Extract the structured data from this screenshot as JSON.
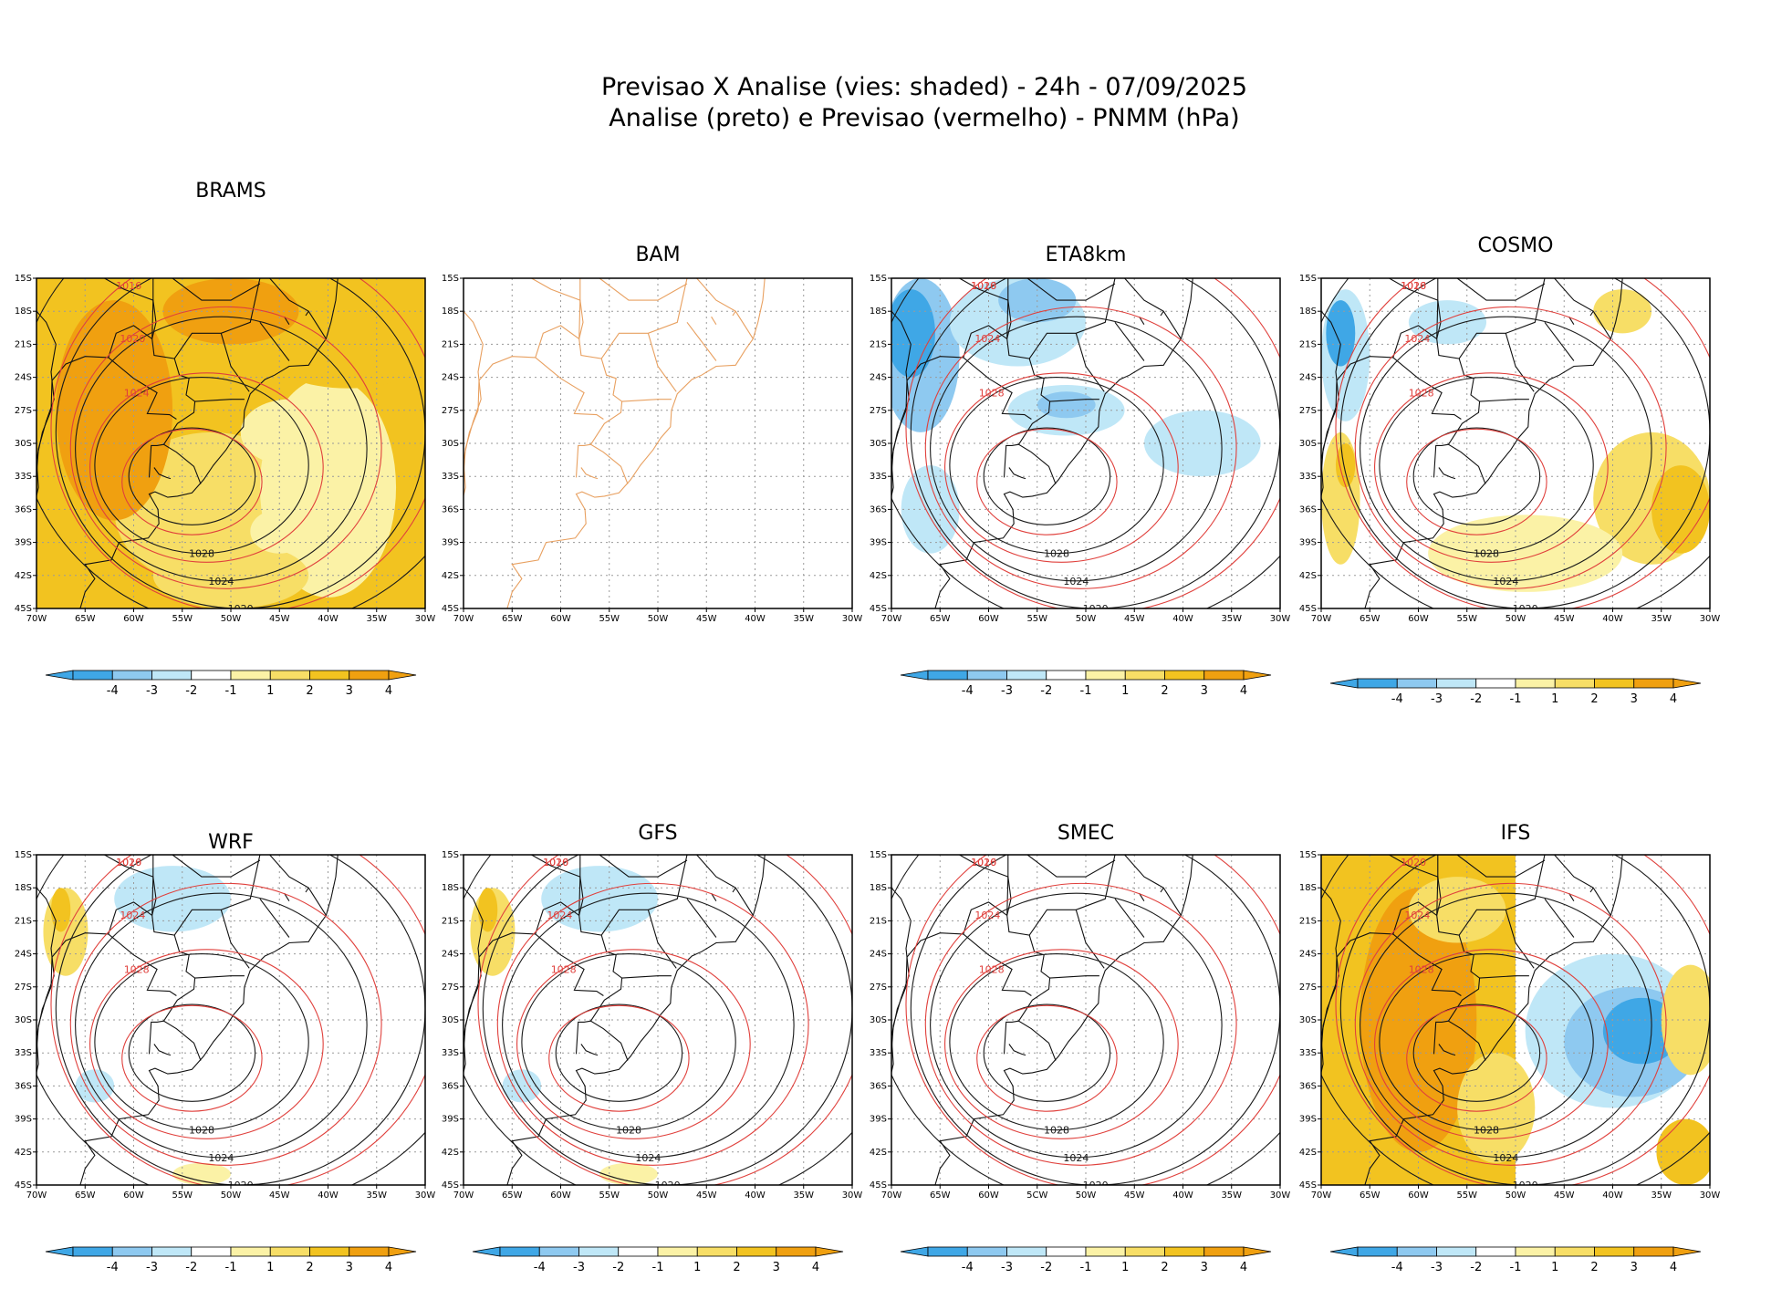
{
  "figure": {
    "title_line1": "Previsao X Analise (vies: shaded) - 24h - 07/09/2025",
    "title_line2": "Analise (preto) e Previsao (vermelho) - PNMM (hPa)"
  },
  "colors": {
    "analysis_contour": "#1a1a1a",
    "forecast_contour": "#e0403c",
    "coastline_empty": "#e8a060",
    "grid": "#9a9a9a",
    "bias_scale": [
      "#3fa7e6",
      "#8ec9f0",
      "#bfe7f7",
      "#ffffff",
      "#fbf2a6",
      "#f7de66",
      "#f2c320",
      "#f0a010"
    ]
  },
  "chart_data": [
    {
      "type": "heatmap",
      "panel": "BRAMS",
      "mode": "warm",
      "title": "BRAMS",
      "xlim": [
        -70,
        -30
      ],
      "ylim": [
        -45,
        -15
      ],
      "x_ticks": [
        "70W",
        "65W",
        "60W",
        "55W",
        "50W",
        "45W",
        "40W",
        "35W",
        "30W"
      ],
      "y_ticks": [
        "15S",
        "18S",
        "21S",
        "24S",
        "27S",
        "30S",
        "33S",
        "36S",
        "39S",
        "42S",
        "45S"
      ],
      "isobars_analysis_hPa": [
        1016,
        1020,
        1024,
        1028
      ],
      "isobars_forecast_hPa": [
        1016,
        1020,
        1024
      ],
      "colorbar_levels": [
        "-4",
        "-3",
        "-2",
        "-1",
        "1",
        "2",
        "3",
        "4"
      ],
      "has_colorbar": true
    },
    {
      "type": "heatmap",
      "panel": "BAM",
      "mode": "empty",
      "title": "BAM",
      "xlim": [
        -70,
        -30
      ],
      "ylim": [
        -45,
        -15
      ],
      "x_ticks": [
        "70W",
        "65W",
        "60W",
        "55W",
        "50W",
        "45W",
        "40W",
        "35W",
        "30W"
      ],
      "y_ticks": [
        "15S",
        "18S",
        "21S",
        "24S",
        "27S",
        "30S",
        "33S",
        "36S",
        "39S",
        "42S",
        "45S"
      ],
      "isobars_analysis_hPa": [],
      "isobars_forecast_hPa": [],
      "colorbar_levels": [],
      "has_colorbar": false
    },
    {
      "type": "heatmap",
      "panel": "ETA8km",
      "mode": "cool",
      "title": "ETA8km",
      "xlim": [
        -70,
        -30
      ],
      "ylim": [
        -45,
        -15
      ],
      "x_ticks": [
        "70W",
        "65W",
        "60W",
        "55W",
        "50W",
        "45W",
        "40W",
        "35W",
        "30W"
      ],
      "y_ticks": [
        "15S",
        "18S",
        "21S",
        "24S",
        "27S",
        "30S",
        "33S",
        "36S",
        "39S",
        "42S",
        "45S"
      ],
      "isobars_analysis_hPa": [
        1016,
        1020,
        1024,
        1028
      ],
      "isobars_forecast_hPa": [
        1016,
        1020,
        1024,
        1028
      ],
      "colorbar_levels": [
        "-4",
        "-3",
        "-2",
        "-1",
        "1",
        "2",
        "3",
        "4"
      ],
      "has_colorbar": true
    },
    {
      "type": "heatmap",
      "panel": "COSMO",
      "mode": "cosmo",
      "title": "COSMO",
      "xlim": [
        -70,
        -30
      ],
      "ylim": [
        -45,
        -15
      ],
      "x_ticks": [
        "70W",
        "65W",
        "60W",
        "55W",
        "50W",
        "45W",
        "40W",
        "35W",
        "30W"
      ],
      "y_ticks": [
        "15S",
        "18S",
        "21S",
        "24S",
        "27S",
        "30S",
        "33S",
        "36S",
        "39S",
        "42S",
        "45S"
      ],
      "isobars_analysis_hPa": [
        1016,
        1020,
        1024,
        1028
      ],
      "isobars_forecast_hPa": [
        1016,
        1020,
        1024,
        1028
      ],
      "colorbar_levels": [
        "-4",
        "-3",
        "-2",
        "-1",
        "1",
        "2",
        "3",
        "4"
      ],
      "has_colorbar": true
    },
    {
      "type": "heatmap",
      "panel": "WRF",
      "mode": "light",
      "title": "WRF",
      "xlim": [
        -70,
        -30
      ],
      "ylim": [
        -45,
        -15
      ],
      "x_ticks": [
        "70W",
        "65W",
        "60W",
        "55W",
        "50W",
        "45W",
        "40W",
        "35W",
        "30W"
      ],
      "y_ticks": [
        "15S",
        "18S",
        "21S",
        "24S",
        "27S",
        "30S",
        "33S",
        "36S",
        "39S",
        "42S",
        "45S"
      ],
      "isobars_analysis_hPa": [
        1016,
        1020,
        1024,
        1028
      ],
      "isobars_forecast_hPa": [
        1016,
        1020,
        1024,
        1028
      ],
      "colorbar_levels": [
        "-4",
        "-3",
        "-2",
        "-1",
        "1",
        "2",
        "3",
        "4"
      ],
      "has_colorbar": true
    },
    {
      "type": "heatmap",
      "panel": "GFS",
      "mode": "light",
      "title": "GFS",
      "xlim": [
        -70,
        -30
      ],
      "ylim": [
        -45,
        -15
      ],
      "x_ticks": [
        "70W",
        "65W",
        "60W",
        "55W",
        "50W",
        "45W",
        "40W",
        "35W",
        "30W"
      ],
      "y_ticks": [
        "15S",
        "18S",
        "21S",
        "24S",
        "27S",
        "30S",
        "33S",
        "36S",
        "39S",
        "42S",
        "45S"
      ],
      "isobars_analysis_hPa": [
        1016,
        1020,
        1024,
        1028
      ],
      "isobars_forecast_hPa": [
        1016,
        1020,
        1024,
        1028
      ],
      "colorbar_levels": [
        "-4",
        "-3",
        "-2",
        "-1",
        "1",
        "2",
        "3",
        "4"
      ],
      "has_colorbar": true
    },
    {
      "type": "heatmap",
      "panel": "SMEC",
      "mode": "none",
      "title": "SMEC",
      "xlim": [
        -70,
        -30
      ],
      "ylim": [
        -45,
        -15
      ],
      "x_ticks": [
        "70W",
        "65W",
        "60W",
        "5CW",
        "50W",
        "45W",
        "40W",
        "35W",
        "30W"
      ],
      "y_ticks": [
        "15S",
        "18S",
        "21S",
        "24S",
        "27S",
        "30S",
        "33S",
        "36S",
        "39S",
        "42S",
        "45S"
      ],
      "isobars_analysis_hPa": [
        1016,
        1020,
        1024,
        1028
      ],
      "isobars_forecast_hPa": [
        1016,
        1020,
        1024,
        1028
      ],
      "colorbar_levels": [
        "-4",
        "-3",
        "-2",
        "-1",
        "1",
        "2",
        "3",
        "4"
      ],
      "has_colorbar": true
    },
    {
      "type": "heatmap",
      "panel": "IFS",
      "mode": "ifs",
      "title": "IFS",
      "xlim": [
        -70,
        -30
      ],
      "ylim": [
        -45,
        -15
      ],
      "x_ticks": [
        "70W",
        "65W",
        "60W",
        "55W",
        "50W",
        "45W",
        "40W",
        "35W",
        "30W"
      ],
      "y_ticks": [
        "15S",
        "18S",
        "21S",
        "24S",
        "27S",
        "30S",
        "33S",
        "36S",
        "39S",
        "42S",
        "45S"
      ],
      "isobars_analysis_hPa": [
        1020,
        1024,
        1028
      ],
      "isobars_forecast_hPa": [
        1020,
        1024,
        1028
      ],
      "colorbar_levels": [
        "-4",
        "-3",
        "-2",
        "-1",
        "1",
        "2",
        "3",
        "4"
      ],
      "has_colorbar": true
    }
  ]
}
